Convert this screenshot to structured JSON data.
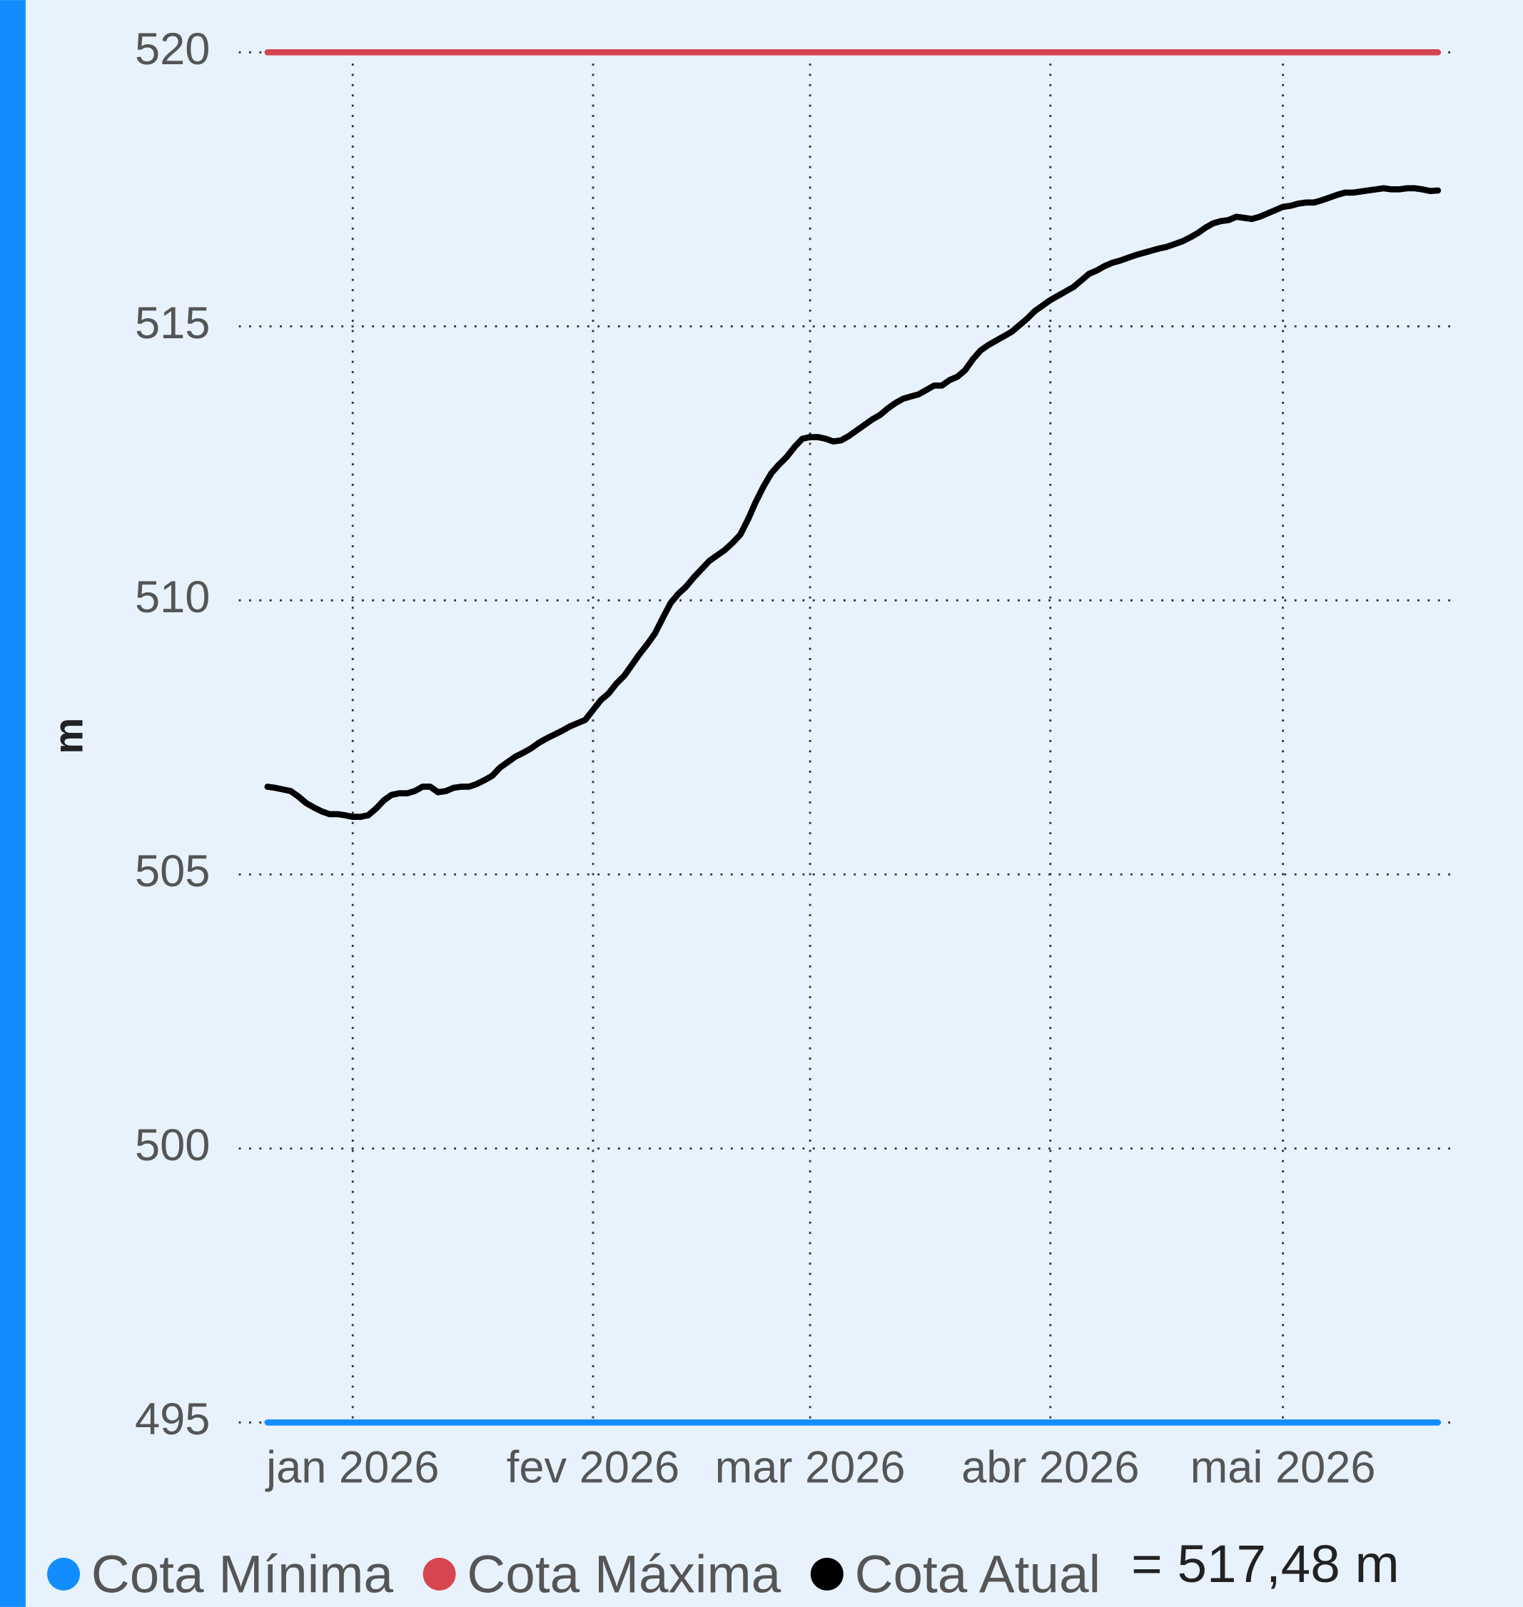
{
  "chart_data": {
    "type": "line",
    "y_label": "m",
    "ylim": [
      495,
      520
    ],
    "yticks": [
      495,
      500,
      505,
      510,
      515,
      520
    ],
    "grid": true,
    "categories": [
      null,
      null,
      null,
      null,
      null,
      null,
      null,
      null,
      null,
      null,
      null,
      "jan 2026",
      null,
      null,
      null,
      null,
      null,
      null,
      null,
      null,
      null,
      null,
      null,
      null,
      null,
      null,
      null,
      null,
      null,
      null,
      null,
      null,
      null,
      null,
      null,
      null,
      null,
      null,
      null,
      null,
      null,
      null,
      "fev 2026",
      null,
      null,
      null,
      null,
      null,
      null,
      null,
      null,
      null,
      null,
      null,
      null,
      null,
      null,
      null,
      null,
      null,
      null,
      null,
      null,
      null,
      null,
      null,
      null,
      null,
      null,
      null,
      "mar 2026",
      null,
      null,
      null,
      null,
      null,
      null,
      null,
      null,
      null,
      null,
      null,
      null,
      null,
      null,
      null,
      null,
      null,
      null,
      null,
      null,
      null,
      null,
      null,
      null,
      null,
      null,
      null,
      null,
      null,
      null,
      "abr 2026",
      null,
      null,
      null,
      null,
      null,
      null,
      null,
      null,
      null,
      null,
      null,
      null,
      null,
      null,
      null,
      null,
      null,
      null,
      null,
      null,
      null,
      null,
      null,
      null,
      null,
      null,
      null,
      null,
      null,
      "mai 2026",
      null,
      null,
      null,
      null,
      null,
      null,
      null,
      null,
      null,
      null,
      null,
      null,
      null,
      null,
      null,
      null,
      null,
      null,
      null,
      null
    ],
    "reference_lines": [
      {
        "name": "Cota Mínima",
        "value": 495,
        "color": "#118dff"
      },
      {
        "name": "Cota Máxima",
        "value": 520,
        "color": "#d64550"
      }
    ],
    "series": [
      {
        "name": "Cota Atual",
        "color": "#000000",
        "values": [
          506.6,
          506.58,
          506.55,
          506.52,
          506.42,
          506.3,
          506.22,
          506.15,
          506.1,
          506.1,
          506.08,
          506.05,
          506.05,
          506.08,
          506.2,
          506.35,
          506.45,
          506.48,
          506.48,
          506.52,
          506.6,
          506.6,
          506.5,
          506.52,
          506.58,
          506.6,
          506.6,
          506.65,
          506.72,
          506.8,
          506.95,
          507.05,
          507.15,
          507.22,
          507.3,
          507.4,
          507.48,
          507.55,
          507.62,
          507.7,
          507.76,
          507.82,
          508.0,
          508.18,
          508.3,
          508.48,
          508.62,
          508.82,
          509.02,
          509.2,
          509.4,
          509.68,
          509.95,
          510.12,
          510.25,
          510.42,
          510.57,
          510.72,
          510.82,
          510.92,
          511.05,
          511.2,
          511.48,
          511.8,
          512.08,
          512.32,
          512.48,
          512.62,
          512.8,
          512.95,
          512.98,
          512.98,
          512.95,
          512.9,
          512.92,
          513.0,
          513.1,
          513.2,
          513.3,
          513.38,
          513.5,
          513.6,
          513.68,
          513.72,
          513.76,
          513.84,
          513.92,
          513.92,
          514.02,
          514.08,
          514.2,
          514.4,
          514.56,
          514.66,
          514.74,
          514.82,
          514.9,
          515.02,
          515.14,
          515.28,
          515.38,
          515.48,
          515.56,
          515.64,
          515.72,
          515.84,
          515.96,
          516.02,
          516.1,
          516.16,
          516.2,
          516.25,
          516.3,
          516.34,
          516.38,
          516.42,
          516.45,
          516.5,
          516.55,
          516.62,
          516.7,
          516.8,
          516.88,
          516.92,
          516.94,
          517.0,
          516.98,
          516.96,
          517.0,
          517.06,
          517.12,
          517.18,
          517.2,
          517.24,
          517.26,
          517.26,
          517.3,
          517.35,
          517.4,
          517.44,
          517.44,
          517.46,
          517.48,
          517.5,
          517.52,
          517.5,
          517.5,
          517.52,
          517.52,
          517.5,
          517.47,
          517.48
        ]
      }
    ],
    "annotation": "= 517,48 m"
  }
}
